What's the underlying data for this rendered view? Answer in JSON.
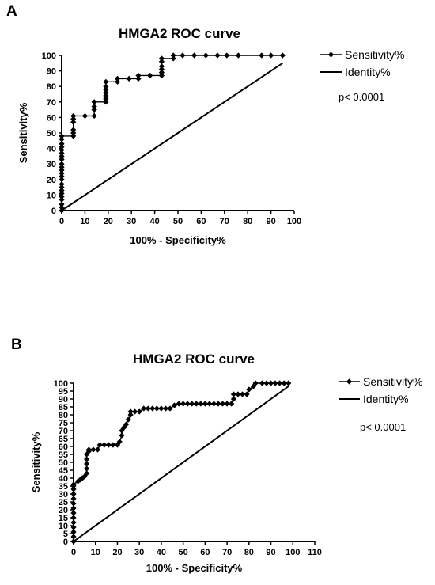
{
  "figure": {
    "panels": [
      {
        "label": "A"
      },
      {
        "label": "B"
      }
    ]
  },
  "chart_data": [
    {
      "type": "line",
      "title": "HMGA2 ROC curve",
      "xlabel": "100% - Specificity%",
      "ylabel": "Sensitivity%",
      "xlim": [
        0,
        100
      ],
      "ylim": [
        0,
        100
      ],
      "xticks": [
        0,
        10,
        20,
        30,
        40,
        50,
        60,
        70,
        80,
        90,
        100
      ],
      "yticks": [
        0,
        10,
        20,
        30,
        40,
        50,
        60,
        70,
        80,
        90,
        100
      ],
      "legend_position": "right",
      "grid": false,
      "annotation": "p< 0.0001",
      "series": [
        {
          "name": "Sensitivity%",
          "marker": "diamond",
          "color": "#000000",
          "points": [
            [
              0,
              0
            ],
            [
              0,
              2
            ],
            [
              0,
              4
            ],
            [
              0,
              7
            ],
            [
              0,
              9
            ],
            [
              0,
              11
            ],
            [
              0,
              13
            ],
            [
              0,
              15
            ],
            [
              0,
              17
            ],
            [
              0,
              20
            ],
            [
              0,
              22
            ],
            [
              0,
              24
            ],
            [
              0,
              26
            ],
            [
              0,
              28
            ],
            [
              0,
              30
            ],
            [
              0,
              33
            ],
            [
              0,
              35
            ],
            [
              0,
              37
            ],
            [
              0,
              39
            ],
            [
              0,
              41
            ],
            [
              0,
              43
            ],
            [
              0,
              46
            ],
            [
              0,
              48
            ],
            [
              5,
              48
            ],
            [
              5,
              50
            ],
            [
              5,
              52
            ],
            [
              5,
              57
            ],
            [
              5,
              59
            ],
            [
              5,
              61
            ],
            [
              10,
              61
            ],
            [
              14,
              61
            ],
            [
              14,
              65
            ],
            [
              14,
              67
            ],
            [
              14,
              70
            ],
            [
              19,
              70
            ],
            [
              19,
              72
            ],
            [
              19,
              74
            ],
            [
              19,
              76
            ],
            [
              19,
              78
            ],
            [
              19,
              80
            ],
            [
              19,
              83
            ],
            [
              24,
              83
            ],
            [
              24,
              85
            ],
            [
              29,
              85
            ],
            [
              33,
              85
            ],
            [
              33,
              87
            ],
            [
              38,
              87
            ],
            [
              43,
              87
            ],
            [
              43,
              89
            ],
            [
              43,
              91
            ],
            [
              43,
              93
            ],
            [
              43,
              96
            ],
            [
              43,
              98
            ],
            [
              48,
              98
            ],
            [
              48,
              100
            ],
            [
              52,
              100
            ],
            [
              57,
              100
            ],
            [
              62,
              100
            ],
            [
              67,
              100
            ],
            [
              71,
              100
            ],
            [
              76,
              100
            ],
            [
              86,
              100
            ],
            [
              90,
              100
            ],
            [
              95,
              100
            ]
          ]
        },
        {
          "name": "Identity%",
          "marker": "none",
          "color": "#000000",
          "points": [
            [
              0,
              0
            ],
            [
              95,
              95
            ]
          ]
        }
      ]
    },
    {
      "type": "line",
      "title": "HMGA2 ROC curve",
      "xlabel": "100% - Specificity%",
      "ylabel": "Sensitivity%",
      "xlim": [
        0,
        110
      ],
      "ylim": [
        0,
        100
      ],
      "xticks": [
        0,
        10,
        20,
        30,
        40,
        50,
        60,
        70,
        80,
        90,
        100,
        110
      ],
      "yticks": [
        0,
        5,
        10,
        15,
        20,
        25,
        30,
        35,
        40,
        45,
        50,
        55,
        60,
        65,
        70,
        75,
        80,
        85,
        90,
        95,
        100
      ],
      "legend_position": "right",
      "grid": false,
      "annotation": "p< 0.0001",
      "series": [
        {
          "name": "Sensitivity%",
          "marker": "diamond",
          "color": "#000000",
          "points": [
            [
              0,
              0
            ],
            [
              0,
              3
            ],
            [
              0,
              6
            ],
            [
              0,
              9
            ],
            [
              0,
              12
            ],
            [
              0,
              15
            ],
            [
              0,
              18
            ],
            [
              0,
              21
            ],
            [
              0,
              24
            ],
            [
              0,
              27
            ],
            [
              0,
              30
            ],
            [
              0,
              33
            ],
            [
              0,
              35
            ],
            [
              0,
              36
            ],
            [
              2,
              38
            ],
            [
              3,
              39
            ],
            [
              4,
              40
            ],
            [
              5,
              41
            ],
            [
              6,
              43
            ],
            [
              6,
              46
            ],
            [
              6,
              49
            ],
            [
              6,
              52
            ],
            [
              6,
              55
            ],
            [
              7,
              57
            ],
            [
              7,
              58
            ],
            [
              9,
              58
            ],
            [
              11,
              58
            ],
            [
              12,
              61
            ],
            [
              14,
              61
            ],
            [
              16,
              61
            ],
            [
              18,
              61
            ],
            [
              20,
              61
            ],
            [
              21,
              63
            ],
            [
              22,
              67
            ],
            [
              22,
              70
            ],
            [
              23,
              72
            ],
            [
              24,
              74
            ],
            [
              25,
              77
            ],
            [
              26,
              80
            ],
            [
              26,
              82
            ],
            [
              28,
              82
            ],
            [
              30,
              82
            ],
            [
              32,
              84
            ],
            [
              34,
              84
            ],
            [
              36,
              84
            ],
            [
              38,
              84
            ],
            [
              40,
              84
            ],
            [
              42,
              84
            ],
            [
              44,
              84
            ],
            [
              46,
              86
            ],
            [
              48,
              87
            ],
            [
              50,
              87
            ],
            [
              52,
              87
            ],
            [
              54,
              87
            ],
            [
              56,
              87
            ],
            [
              58,
              87
            ],
            [
              60,
              87
            ],
            [
              62,
              87
            ],
            [
              64,
              87
            ],
            [
              66,
              87
            ],
            [
              68,
              87
            ],
            [
              70,
              87
            ],
            [
              72,
              87
            ],
            [
              73,
              90
            ],
            [
              73,
              93
            ],
            [
              75,
              93
            ],
            [
              77,
              93
            ],
            [
              79,
              93
            ],
            [
              80,
              96
            ],
            [
              82,
              98
            ],
            [
              83,
              100
            ],
            [
              86,
              100
            ],
            [
              88,
              100
            ],
            [
              90,
              100
            ],
            [
              92,
              100
            ],
            [
              94,
              100
            ],
            [
              96,
              100
            ],
            [
              98,
              100
            ]
          ]
        },
        {
          "name": "Identity%",
          "marker": "none",
          "color": "#000000",
          "points": [
            [
              0,
              0
            ],
            [
              98,
              98
            ]
          ]
        }
      ]
    }
  ]
}
